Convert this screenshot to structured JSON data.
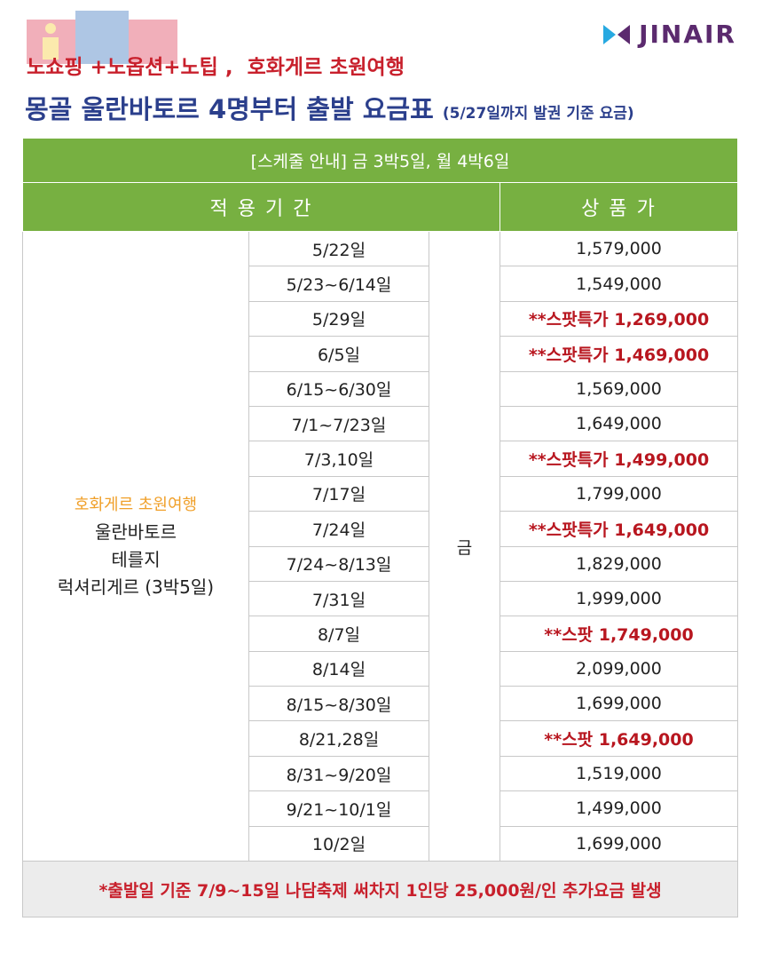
{
  "header": {
    "logo": "JINAIR",
    "tagline": "노쇼핑 +노옵션+노팁 ,  호화게르 초원여행",
    "title": "몽골 울란바토르 4명부터 출발 요금표",
    "note": "(5/27일까지 발권 기준 요금)"
  },
  "table": {
    "schedule": "[스케줄 안내] 금 3박5일, 월 4박6일",
    "headers": [
      "적 용 기 간",
      "상 품 가"
    ],
    "product": {
      "highlight": "호화게르 초원여행",
      "lines": [
        "울란바토르",
        "테를지",
        "럭셔리게르 (3박5일)"
      ]
    },
    "day": "금",
    "rows": [
      [
        "5/22일",
        "1,579,000"
      ],
      [
        "5/23~6/14일",
        "1,549,000"
      ],
      [
        "5/29일",
        "**스팟특가 1,269,000"
      ],
      [
        "6/5일",
        "**스팟특가 1,469,000"
      ],
      [
        "6/15~6/30일",
        "1,569,000"
      ],
      [
        "7/1~7/23일",
        "1,649,000"
      ],
      [
        "7/3,10일",
        "**스팟특가 1,499,000"
      ],
      [
        "7/17일",
        "1,799,000"
      ],
      [
        "7/24일",
        "**스팟특가 1,649,000"
      ],
      [
        "7/24~8/13일",
        "1,829,000"
      ],
      [
        "7/31일",
        "1,999,000"
      ],
      [
        "8/7일",
        "**스팟 1,749,000"
      ],
      [
        "8/14일",
        "2,099,000"
      ],
      [
        "8/15~8/30일",
        "1,699,000"
      ],
      [
        "8/21,28일",
        "**스팟 1,649,000"
      ],
      [
        "8/31~9/20일",
        "1,519,000"
      ],
      [
        "9/21~10/1일",
        "1,499,000"
      ],
      [
        "10/2일",
        "1,699,000"
      ]
    ],
    "footnote": "*출발일 기준 7/9~15일 나담축제 써차지 1인당 25,000원/인 추가요금 발생"
  }
}
